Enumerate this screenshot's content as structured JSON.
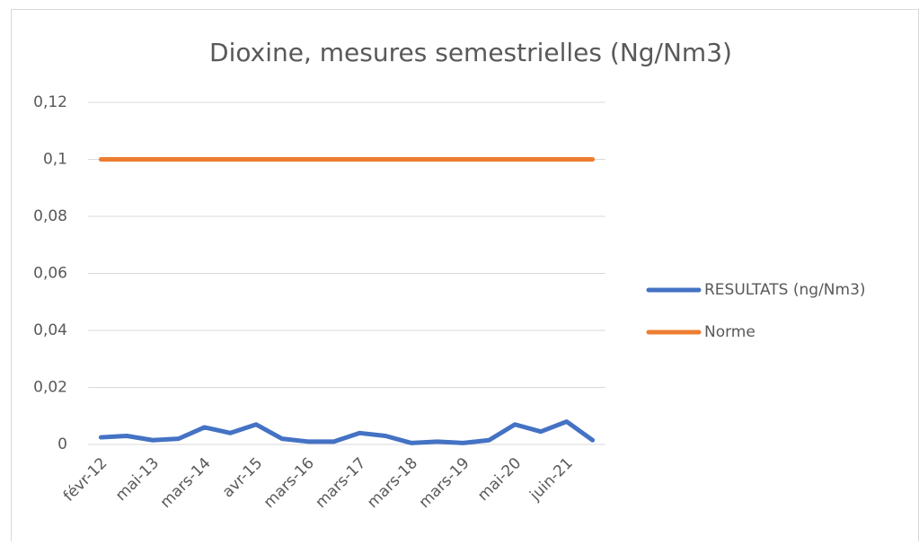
{
  "chart_data": {
    "type": "line",
    "title": "Dioxine, mesures semestrielles (Ng/Nm3)",
    "categories": [
      "févr-12",
      null,
      "mai-13",
      null,
      "mars-14",
      null,
      "avr-15",
      null,
      "mars-16",
      null,
      "mars-17",
      null,
      "mars-18",
      null,
      "mars-19",
      null,
      "mai-20",
      null,
      "juin-21",
      null
    ],
    "series": [
      {
        "name": "RESULTATS (ng/Nm3)",
        "color": "#4472c4",
        "values": [
          0.0025,
          0.003,
          0.0015,
          0.002,
          0.006,
          0.004,
          0.007,
          0.002,
          0.001,
          0.001,
          0.004,
          0.003,
          0.0005,
          0.001,
          0.0005,
          0.0015,
          0.007,
          0.0045,
          0.008,
          0.0015
        ]
      },
      {
        "name": "Norme",
        "color": "#ed7d31",
        "values": [
          0.1,
          0.1,
          0.1,
          0.1,
          0.1,
          0.1,
          0.1,
          0.1,
          0.1,
          0.1,
          0.1,
          0.1,
          0.1,
          0.1,
          0.1,
          0.1,
          0.1,
          0.1,
          0.1,
          0.1
        ]
      }
    ],
    "ylim": [
      0,
      0.12
    ],
    "yticks": [
      0,
      {
        "value": 0.02,
        "label": "0,02"
      },
      {
        "value": 0.04,
        "label": "0,04"
      },
      {
        "value": 0.06,
        "label": "0,06"
      },
      {
        "value": 0.08,
        "label": "0,08"
      },
      {
        "value": 0.1,
        "label": "0,1"
      },
      {
        "value": 0.12,
        "label": "0,12"
      }
    ],
    "grid": true,
    "legend": "right"
  }
}
